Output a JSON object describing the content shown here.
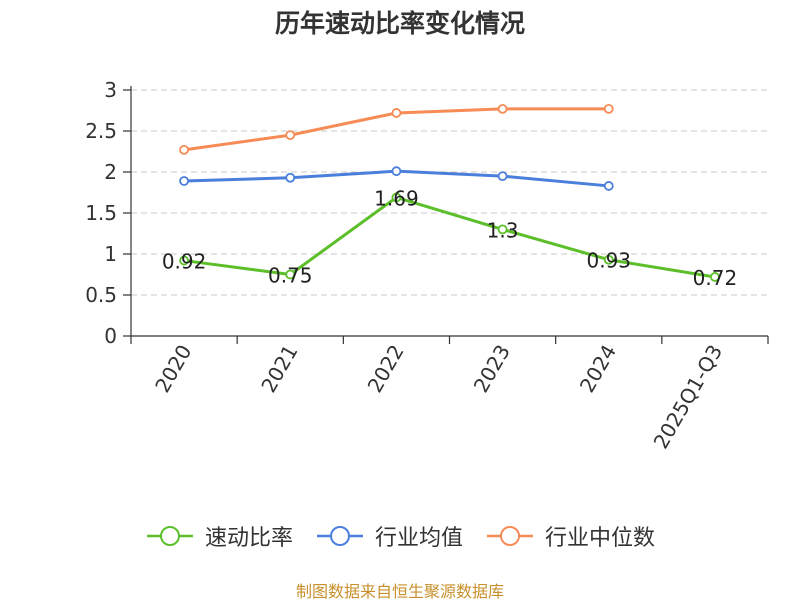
{
  "chart_data": {
    "type": "line",
    "title": "历年速动比率变化情况",
    "categories": [
      "2020",
      "2021",
      "2022",
      "2023",
      "2024",
      "2025Q1-Q3"
    ],
    "yticks": [
      "0",
      "0.5",
      "1",
      "1.5",
      "2",
      "2.5",
      "3"
    ],
    "ylim": [
      0,
      3
    ],
    "grid": true,
    "legend_position": "bottom",
    "series": [
      {
        "name": "速动比率",
        "color": "#5cbf2a",
        "values": [
          0.92,
          0.75,
          1.69,
          1.3,
          0.93,
          0.72
        ],
        "labels": [
          "0.92",
          "0.75",
          "1.69",
          "1.3",
          "0.93",
          "0.72"
        ]
      },
      {
        "name": "行业均值",
        "color": "#4a7fdc",
        "values": [
          1.89,
          1.93,
          2.01,
          1.95,
          1.83,
          null
        ]
      },
      {
        "name": "行业中位数",
        "color": "#f78b55",
        "values": [
          2.27,
          2.45,
          2.72,
          2.77,
          2.77,
          null
        ]
      }
    ]
  },
  "source": "制图数据来自恒生聚源数据库"
}
